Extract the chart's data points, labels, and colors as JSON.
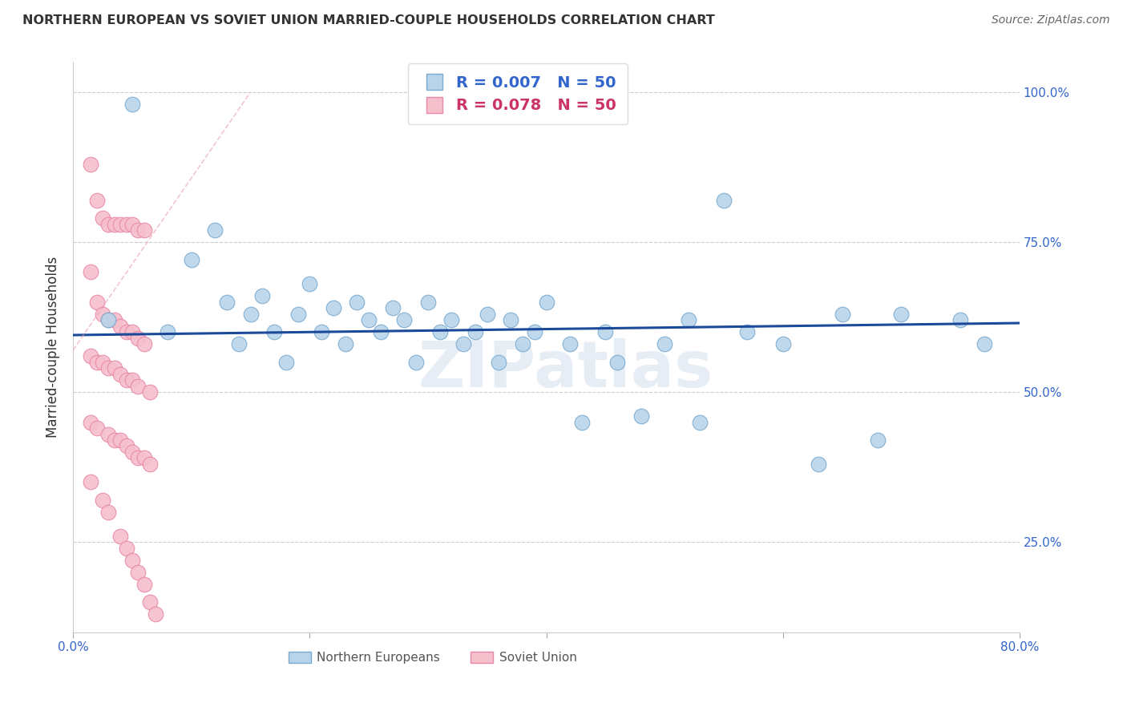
{
  "title": "NORTHERN EUROPEAN VS SOVIET UNION MARRIED-COUPLE HOUSEHOLDS CORRELATION CHART",
  "source": "Source: ZipAtlas.com",
  "ylabel": "Married-couple Households",
  "xlim": [
    0.0,
    80.0
  ],
  "ylim": [
    10.0,
    105.0
  ],
  "blue_R": 0.007,
  "blue_N": 50,
  "pink_R": 0.078,
  "pink_N": 50,
  "blue_color": "#b8d4ea",
  "blue_edge": "#7aaad0",
  "blue_trend_color": "#1a4a99",
  "pink_color": "#f5bfcc",
  "pink_edge": "#e888a8",
  "pink_trend_color": "#e8a0b0",
  "watermark": "ZIPatlas",
  "legend_label_blue": "Northern Europeans",
  "legend_label_pink": "Soviet Union",
  "blue_x": [
    3.0,
    5.0,
    8.0,
    10.0,
    12.0,
    13.0,
    14.0,
    15.0,
    16.0,
    17.0,
    18.0,
    19.0,
    20.0,
    21.0,
    22.0,
    23.0,
    24.0,
    25.0,
    26.0,
    27.0,
    28.0,
    29.0,
    30.0,
    31.0,
    32.0,
    33.0,
    34.0,
    35.0,
    36.0,
    37.0,
    38.0,
    39.0,
    40.0,
    42.0,
    43.0,
    45.0,
    46.0,
    48.0,
    50.0,
    52.0,
    53.0,
    55.0,
    57.0,
    60.0,
    63.0,
    65.0,
    68.0,
    70.0,
    75.0,
    77.0
  ],
  "blue_y": [
    62.0,
    98.0,
    60.0,
    72.0,
    77.0,
    65.0,
    58.0,
    63.0,
    66.0,
    60.0,
    55.0,
    63.0,
    68.0,
    60.0,
    64.0,
    58.0,
    65.0,
    62.0,
    60.0,
    64.0,
    62.0,
    55.0,
    65.0,
    60.0,
    62.0,
    58.0,
    60.0,
    63.0,
    55.0,
    62.0,
    58.0,
    60.0,
    65.0,
    58.0,
    45.0,
    60.0,
    55.0,
    46.0,
    58.0,
    62.0,
    45.0,
    82.0,
    60.0,
    58.0,
    38.0,
    63.0,
    42.0,
    63.0,
    62.0,
    58.0
  ],
  "pink_x": [
    1.5,
    2.0,
    2.5,
    3.0,
    3.5,
    4.0,
    4.5,
    5.0,
    5.5,
    6.0,
    1.5,
    2.0,
    2.5,
    3.0,
    3.5,
    4.0,
    4.5,
    5.0,
    5.5,
    6.0,
    1.5,
    2.0,
    2.5,
    3.0,
    3.5,
    4.0,
    4.5,
    5.0,
    5.5,
    6.5,
    1.5,
    2.0,
    3.0,
    3.5,
    4.0,
    4.5,
    5.0,
    5.5,
    6.0,
    6.5,
    1.5,
    2.5,
    3.0,
    4.0,
    4.5,
    5.0,
    5.5,
    6.0,
    6.5,
    7.0
  ],
  "pink_y": [
    88.0,
    82.0,
    79.0,
    78.0,
    78.0,
    78.0,
    78.0,
    78.0,
    77.0,
    77.0,
    70.0,
    65.0,
    63.0,
    62.0,
    62.0,
    61.0,
    60.0,
    60.0,
    59.0,
    58.0,
    56.0,
    55.0,
    55.0,
    54.0,
    54.0,
    53.0,
    52.0,
    52.0,
    51.0,
    50.0,
    45.0,
    44.0,
    43.0,
    42.0,
    42.0,
    41.0,
    40.0,
    39.0,
    39.0,
    38.0,
    35.0,
    32.0,
    30.0,
    26.0,
    24.0,
    22.0,
    20.0,
    18.0,
    15.0,
    13.0
  ]
}
